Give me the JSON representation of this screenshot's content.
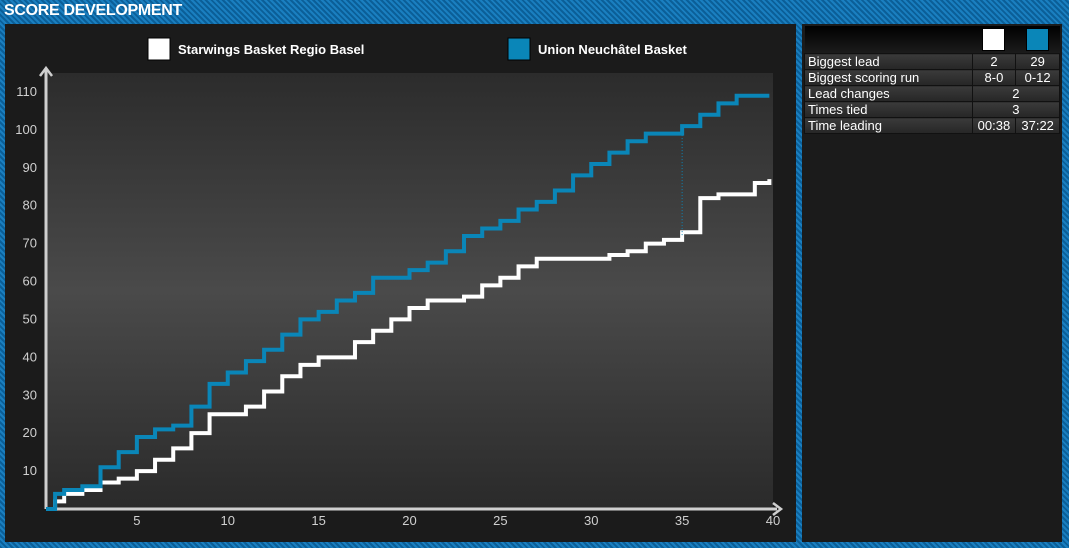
{
  "header": {
    "title": "SCORE DEVELOPMENT"
  },
  "stats": {
    "rows": [
      {
        "label": "Biggest lead",
        "team1": "2",
        "team2": "29"
      },
      {
        "label": "Biggest scoring run",
        "team1": "8-0",
        "team2": "0-12"
      },
      {
        "label": "Lead changes",
        "both": "2"
      },
      {
        "label": "Times tied",
        "both": "3"
      },
      {
        "label": "Time leading",
        "team1": "00:38",
        "team2": "37:22"
      }
    ]
  },
  "colors": {
    "team1": "#ffffff",
    "team2": "#0a86b8",
    "background": "#1b1b1b"
  },
  "chart_data": {
    "type": "line",
    "title": "",
    "xlabel": "",
    "ylabel": "",
    "xlim": [
      0,
      40
    ],
    "ylim": [
      0,
      115
    ],
    "x_ticks": [
      5,
      10,
      15,
      20,
      25,
      30,
      35,
      40
    ],
    "y_ticks": [
      10,
      20,
      30,
      40,
      50,
      60,
      70,
      80,
      90,
      100,
      110
    ],
    "legend_position": "top",
    "series": [
      {
        "name": "Starwings Basket Regio Basel",
        "color": "#ffffff",
        "points": [
          [
            0,
            0
          ],
          [
            0.5,
            2
          ],
          [
            1,
            4
          ],
          [
            2,
            5
          ],
          [
            3,
            7
          ],
          [
            4,
            8
          ],
          [
            5,
            10
          ],
          [
            6,
            13
          ],
          [
            7,
            16
          ],
          [
            8,
            20
          ],
          [
            9,
            25
          ],
          [
            10,
            25
          ],
          [
            11,
            27
          ],
          [
            12,
            31
          ],
          [
            13,
            35
          ],
          [
            14,
            38
          ],
          [
            15,
            40
          ],
          [
            16,
            40
          ],
          [
            17,
            44
          ],
          [
            18,
            47
          ],
          [
            19,
            50
          ],
          [
            20,
            53
          ],
          [
            21,
            55
          ],
          [
            22,
            55
          ],
          [
            23,
            56
          ],
          [
            24,
            59
          ],
          [
            25,
            61
          ],
          [
            26,
            64
          ],
          [
            27,
            66
          ],
          [
            28,
            66
          ],
          [
            29,
            66
          ],
          [
            30,
            66
          ],
          [
            31,
            67
          ],
          [
            32,
            68
          ],
          [
            33,
            70
          ],
          [
            34,
            71
          ],
          [
            35,
            73
          ],
          [
            36,
            82
          ],
          [
            37,
            83
          ],
          [
            38,
            83
          ],
          [
            39,
            86
          ],
          [
            39.8,
            87
          ]
        ]
      },
      {
        "name": "Union Neuchâtel Basket",
        "color": "#0a86b8",
        "points": [
          [
            0,
            0
          ],
          [
            0.5,
            4
          ],
          [
            1,
            5
          ],
          [
            2,
            6
          ],
          [
            3,
            11
          ],
          [
            4,
            15
          ],
          [
            5,
            19
          ],
          [
            6,
            21
          ],
          [
            7,
            22
          ],
          [
            8,
            27
          ],
          [
            9,
            33
          ],
          [
            10,
            36
          ],
          [
            11,
            39
          ],
          [
            12,
            42
          ],
          [
            13,
            46
          ],
          [
            14,
            50
          ],
          [
            15,
            52
          ],
          [
            16,
            55
          ],
          [
            17,
            57
          ],
          [
            18,
            61
          ],
          [
            19,
            61
          ],
          [
            20,
            63
          ],
          [
            21,
            65
          ],
          [
            22,
            68
          ],
          [
            23,
            72
          ],
          [
            24,
            74
          ],
          [
            25,
            76
          ],
          [
            26,
            79
          ],
          [
            27,
            81
          ],
          [
            28,
            84
          ],
          [
            29,
            88
          ],
          [
            30,
            91
          ],
          [
            31,
            94
          ],
          [
            32,
            97
          ],
          [
            33,
            99
          ],
          [
            34,
            99
          ],
          [
            35,
            101
          ],
          [
            36,
            104
          ],
          [
            37,
            107
          ],
          [
            38,
            109
          ],
          [
            39,
            109
          ],
          [
            39.8,
            109
          ]
        ]
      }
    ]
  }
}
